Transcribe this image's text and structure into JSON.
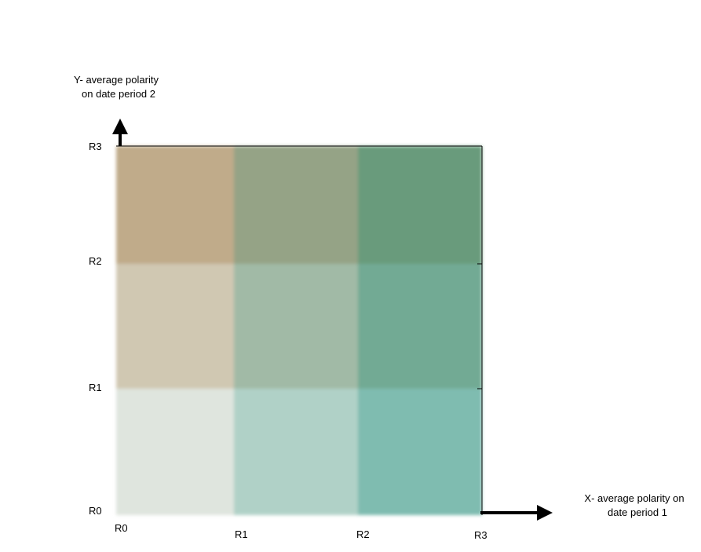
{
  "chart_data": {
    "type": "heatmap",
    "x_axis": {
      "label_lines": [
        "X- average polarity on",
        "date period 1"
      ],
      "ticks": [
        "R0",
        "R1",
        "R2",
        "R3"
      ]
    },
    "y_axis": {
      "label_lines": [
        "Y- average polarity",
        "on date period 2"
      ],
      "ticks": [
        "R0",
        "R1",
        "R2",
        "R3"
      ]
    },
    "cells": [
      {
        "x_range": "R0-R1",
        "y_range": "R0-R1",
        "color": "#dfe5de"
      },
      {
        "x_range": "R1-R2",
        "y_range": "R0-R1",
        "color": "#b0d1c7"
      },
      {
        "x_range": "R2-R3",
        "y_range": "R0-R1",
        "color": "#7fbcb0"
      },
      {
        "x_range": "R0-R1",
        "y_range": "R1-R2",
        "color": "#d0c8b2"
      },
      {
        "x_range": "R1-R2",
        "y_range": "R1-R2",
        "color": "#a1baa6"
      },
      {
        "x_range": "R2-R3",
        "y_range": "R1-R2",
        "color": "#72aa94"
      },
      {
        "x_range": "R0-R1",
        "y_range": "R2-R3",
        "color": "#c0ab8a"
      },
      {
        "x_range": "R1-R2",
        "y_range": "R2-R3",
        "color": "#95a386"
      },
      {
        "x_range": "R2-R3",
        "y_range": "R2-R3",
        "color": "#699b7c"
      }
    ],
    "grid": false,
    "legend": "none"
  }
}
